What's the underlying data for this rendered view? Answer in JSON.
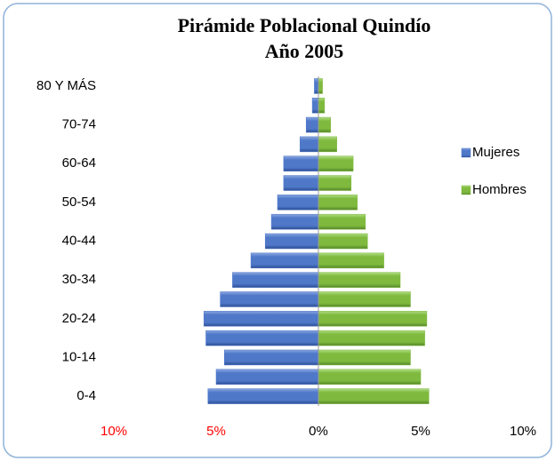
{
  "chart_data": {
    "type": "pyramid",
    "title": [
      "Pirámide Poblacional Quindío",
      "Año 2005"
    ],
    "categories": [
      "0-4",
      null,
      "10-14",
      null,
      "20-24",
      null,
      "30-34",
      null,
      "40-44",
      null,
      "50-54",
      null,
      "60-64",
      null,
      "70-74",
      null,
      "80 Y MÁS"
    ],
    "series": [
      {
        "name": "Mujeres",
        "color": "#4f78c9",
        "values": [
          -5.4,
          -5.0,
          -4.6,
          -5.5,
          -5.6,
          -4.8,
          -4.2,
          -3.3,
          -2.6,
          -2.3,
          -2.0,
          -1.7,
          -1.7,
          -0.9,
          -0.6,
          -0.3,
          -0.2
        ]
      },
      {
        "name": "Hombres",
        "color": "#7fba3e",
        "values": [
          5.4,
          5.0,
          4.5,
          5.2,
          5.3,
          4.5,
          4.0,
          3.2,
          2.4,
          2.3,
          1.9,
          1.6,
          1.7,
          0.9,
          0.6,
          0.3,
          0.2
        ]
      }
    ],
    "xlim": [
      -10,
      10
    ],
    "xticks": [
      {
        "value": -10,
        "label": "10%"
      },
      {
        "value": -5,
        "label": "5%"
      },
      {
        "value": 0,
        "label": "0%"
      },
      {
        "value": 5,
        "label": "5%"
      },
      {
        "value": 10,
        "label": "10%"
      }
    ],
    "legend": "right"
  }
}
